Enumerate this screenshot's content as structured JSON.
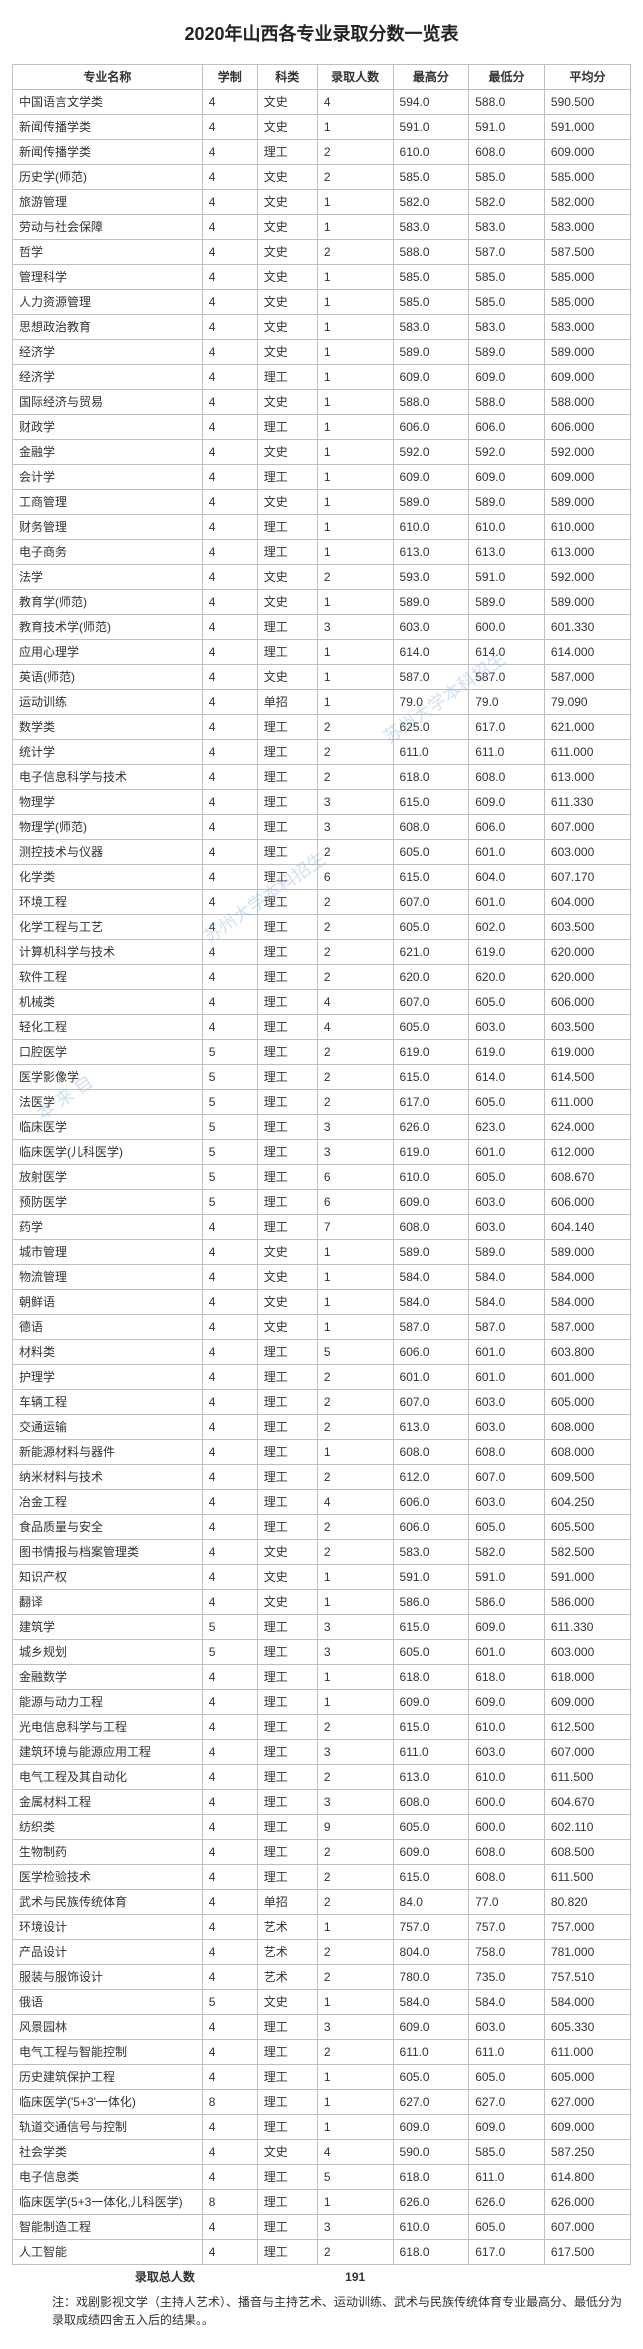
{
  "title": "2020年山西各专业录取分数一览表",
  "columns": [
    "专业名称",
    "学制",
    "科类",
    "录取人数",
    "最高分",
    "最低分",
    "平均分"
  ],
  "total_label": "录取总人数",
  "total_value": "191",
  "footnote": "注：戏剧影视文学（主持人艺术）、播音与主持艺术、运动训练、武术与民族传统体育专业最高分、最低分为录取成绩四舍五入后的结果。。",
  "rows": [
    [
      "中国语言文学类",
      "4",
      "文史",
      "4",
      "594.0",
      "588.0",
      "590.500"
    ],
    [
      "新闻传播学类",
      "4",
      "文史",
      "1",
      "591.0",
      "591.0",
      "591.000"
    ],
    [
      "新闻传播学类",
      "4",
      "理工",
      "2",
      "610.0",
      "608.0",
      "609.000"
    ],
    [
      "历史学(师范)",
      "4",
      "文史",
      "2",
      "585.0",
      "585.0",
      "585.000"
    ],
    [
      "旅游管理",
      "4",
      "文史",
      "1",
      "582.0",
      "582.0",
      "582.000"
    ],
    [
      "劳动与社会保障",
      "4",
      "文史",
      "1",
      "583.0",
      "583.0",
      "583.000"
    ],
    [
      "哲学",
      "4",
      "文史",
      "2",
      "588.0",
      "587.0",
      "587.500"
    ],
    [
      "管理科学",
      "4",
      "文史",
      "1",
      "585.0",
      "585.0",
      "585.000"
    ],
    [
      "人力资源管理",
      "4",
      "文史",
      "1",
      "585.0",
      "585.0",
      "585.000"
    ],
    [
      "思想政治教育",
      "4",
      "文史",
      "1",
      "583.0",
      "583.0",
      "583.000"
    ],
    [
      "经济学",
      "4",
      "文史",
      "1",
      "589.0",
      "589.0",
      "589.000"
    ],
    [
      "经济学",
      "4",
      "理工",
      "1",
      "609.0",
      "609.0",
      "609.000"
    ],
    [
      "国际经济与贸易",
      "4",
      "文史",
      "1",
      "588.0",
      "588.0",
      "588.000"
    ],
    [
      "财政学",
      "4",
      "理工",
      "1",
      "606.0",
      "606.0",
      "606.000"
    ],
    [
      "金融学",
      "4",
      "文史",
      "1",
      "592.0",
      "592.0",
      "592.000"
    ],
    [
      "会计学",
      "4",
      "理工",
      "1",
      "609.0",
      "609.0",
      "609.000"
    ],
    [
      "工商管理",
      "4",
      "文史",
      "1",
      "589.0",
      "589.0",
      "589.000"
    ],
    [
      "财务管理",
      "4",
      "理工",
      "1",
      "610.0",
      "610.0",
      "610.000"
    ],
    [
      "电子商务",
      "4",
      "理工",
      "1",
      "613.0",
      "613.0",
      "613.000"
    ],
    [
      "法学",
      "4",
      "文史",
      "2",
      "593.0",
      "591.0",
      "592.000"
    ],
    [
      "教育学(师范)",
      "4",
      "文史",
      "1",
      "589.0",
      "589.0",
      "589.000"
    ],
    [
      "教育技术学(师范)",
      "4",
      "理工",
      "3",
      "603.0",
      "600.0",
      "601.330"
    ],
    [
      "应用心理学",
      "4",
      "理工",
      "1",
      "614.0",
      "614.0",
      "614.000"
    ],
    [
      "英语(师范)",
      "4",
      "文史",
      "1",
      "587.0",
      "587.0",
      "587.000"
    ],
    [
      "运动训练",
      "4",
      "单招",
      "1",
      "79.0",
      "79.0",
      "79.090"
    ],
    [
      "数学类",
      "4",
      "理工",
      "2",
      "625.0",
      "617.0",
      "621.000"
    ],
    [
      "统计学",
      "4",
      "理工",
      "2",
      "611.0",
      "611.0",
      "611.000"
    ],
    [
      "电子信息科学与技术",
      "4",
      "理工",
      "2",
      "618.0",
      "608.0",
      "613.000"
    ],
    [
      "物理学",
      "4",
      "理工",
      "3",
      "615.0",
      "609.0",
      "611.330"
    ],
    [
      "物理学(师范)",
      "4",
      "理工",
      "3",
      "608.0",
      "606.0",
      "607.000"
    ],
    [
      "测控技术与仪器",
      "4",
      "理工",
      "2",
      "605.0",
      "601.0",
      "603.000"
    ],
    [
      "化学类",
      "4",
      "理工",
      "6",
      "615.0",
      "604.0",
      "607.170"
    ],
    [
      "环境工程",
      "4",
      "理工",
      "2",
      "607.0",
      "601.0",
      "604.000"
    ],
    [
      "化学工程与工艺",
      "4",
      "理工",
      "2",
      "605.0",
      "602.0",
      "603.500"
    ],
    [
      "计算机科学与技术",
      "4",
      "理工",
      "2",
      "621.0",
      "619.0",
      "620.000"
    ],
    [
      "软件工程",
      "4",
      "理工",
      "2",
      "620.0",
      "620.0",
      "620.000"
    ],
    [
      "机械类",
      "4",
      "理工",
      "4",
      "607.0",
      "605.0",
      "606.000"
    ],
    [
      "轻化工程",
      "4",
      "理工",
      "4",
      "605.0",
      "603.0",
      "603.500"
    ],
    [
      "口腔医学",
      "5",
      "理工",
      "2",
      "619.0",
      "619.0",
      "619.000"
    ],
    [
      "医学影像学",
      "5",
      "理工",
      "2",
      "615.0",
      "614.0",
      "614.500"
    ],
    [
      "法医学",
      "5",
      "理工",
      "2",
      "617.0",
      "605.0",
      "611.000"
    ],
    [
      "临床医学",
      "5",
      "理工",
      "3",
      "626.0",
      "623.0",
      "624.000"
    ],
    [
      "临床医学(儿科医学)",
      "5",
      "理工",
      "3",
      "619.0",
      "601.0",
      "612.000"
    ],
    [
      "放射医学",
      "5",
      "理工",
      "6",
      "610.0",
      "605.0",
      "608.670"
    ],
    [
      "预防医学",
      "5",
      "理工",
      "6",
      "609.0",
      "603.0",
      "606.000"
    ],
    [
      "药学",
      "4",
      "理工",
      "7",
      "608.0",
      "603.0",
      "604.140"
    ],
    [
      "城市管理",
      "4",
      "文史",
      "1",
      "589.0",
      "589.0",
      "589.000"
    ],
    [
      "物流管理",
      "4",
      "文史",
      "1",
      "584.0",
      "584.0",
      "584.000"
    ],
    [
      "朝鲜语",
      "4",
      "文史",
      "1",
      "584.0",
      "584.0",
      "584.000"
    ],
    [
      "德语",
      "4",
      "文史",
      "1",
      "587.0",
      "587.0",
      "587.000"
    ],
    [
      "材料类",
      "4",
      "理工",
      "5",
      "606.0",
      "601.0",
      "603.800"
    ],
    [
      "护理学",
      "4",
      "理工",
      "2",
      "601.0",
      "601.0",
      "601.000"
    ],
    [
      "车辆工程",
      "4",
      "理工",
      "2",
      "607.0",
      "603.0",
      "605.000"
    ],
    [
      "交通运输",
      "4",
      "理工",
      "2",
      "613.0",
      "603.0",
      "608.000"
    ],
    [
      "新能源材料与器件",
      "4",
      "理工",
      "1",
      "608.0",
      "608.0",
      "608.000"
    ],
    [
      "纳米材料与技术",
      "4",
      "理工",
      "2",
      "612.0",
      "607.0",
      "609.500"
    ],
    [
      "冶金工程",
      "4",
      "理工",
      "4",
      "606.0",
      "603.0",
      "604.250"
    ],
    [
      "食品质量与安全",
      "4",
      "理工",
      "2",
      "606.0",
      "605.0",
      "605.500"
    ],
    [
      "图书情报与档案管理类",
      "4",
      "文史",
      "2",
      "583.0",
      "582.0",
      "582.500"
    ],
    [
      "知识产权",
      "4",
      "文史",
      "1",
      "591.0",
      "591.0",
      "591.000"
    ],
    [
      "翻译",
      "4",
      "文史",
      "1",
      "586.0",
      "586.0",
      "586.000"
    ],
    [
      "建筑学",
      "5",
      "理工",
      "3",
      "615.0",
      "609.0",
      "611.330"
    ],
    [
      "城乡规划",
      "5",
      "理工",
      "3",
      "605.0",
      "601.0",
      "603.000"
    ],
    [
      "金融数学",
      "4",
      "理工",
      "1",
      "618.0",
      "618.0",
      "618.000"
    ],
    [
      "能源与动力工程",
      "4",
      "理工",
      "1",
      "609.0",
      "609.0",
      "609.000"
    ],
    [
      "光电信息科学与工程",
      "4",
      "理工",
      "2",
      "615.0",
      "610.0",
      "612.500"
    ],
    [
      "建筑环境与能源应用工程",
      "4",
      "理工",
      "3",
      "611.0",
      "603.0",
      "607.000"
    ],
    [
      "电气工程及其自动化",
      "4",
      "理工",
      "2",
      "613.0",
      "610.0",
      "611.500"
    ],
    [
      "金属材料工程",
      "4",
      "理工",
      "3",
      "608.0",
      "600.0",
      "604.670"
    ],
    [
      "纺织类",
      "4",
      "理工",
      "9",
      "605.0",
      "600.0",
      "602.110"
    ],
    [
      "生物制药",
      "4",
      "理工",
      "2",
      "609.0",
      "608.0",
      "608.500"
    ],
    [
      "医学检验技术",
      "4",
      "理工",
      "2",
      "615.0",
      "608.0",
      "611.500"
    ],
    [
      "武术与民族传统体育",
      "4",
      "单招",
      "2",
      "84.0",
      "77.0",
      "80.820"
    ],
    [
      "环境设计",
      "4",
      "艺术",
      "1",
      "757.0",
      "757.0",
      "757.000"
    ],
    [
      "产品设计",
      "4",
      "艺术",
      "2",
      "804.0",
      "758.0",
      "781.000"
    ],
    [
      "服装与服饰设计",
      "4",
      "艺术",
      "2",
      "780.0",
      "735.0",
      "757.510"
    ],
    [
      "俄语",
      "5",
      "文史",
      "1",
      "584.0",
      "584.0",
      "584.000"
    ],
    [
      "风景园林",
      "4",
      "理工",
      "3",
      "609.0",
      "603.0",
      "605.330"
    ],
    [
      "电气工程与智能控制",
      "4",
      "理工",
      "2",
      "611.0",
      "611.0",
      "611.000"
    ],
    [
      "历史建筑保护工程",
      "4",
      "理工",
      "1",
      "605.0",
      "605.0",
      "605.000"
    ],
    [
      "临床医学('5+3'一体化)",
      "8",
      "理工",
      "1",
      "627.0",
      "627.0",
      "627.000"
    ],
    [
      "轨道交通信号与控制",
      "4",
      "理工",
      "1",
      "609.0",
      "609.0",
      "609.000"
    ],
    [
      "社会学类",
      "4",
      "文史",
      "4",
      "590.0",
      "585.0",
      "587.250"
    ],
    [
      "电子信息类",
      "4",
      "理工",
      "5",
      "618.0",
      "611.0",
      "614.800"
    ],
    [
      "临床医学(5+3一体化,儿科医学)",
      "8",
      "理工",
      "1",
      "626.0",
      "626.0",
      "626.000"
    ],
    [
      "智能制造工程",
      "4",
      "理工",
      "3",
      "610.0",
      "605.0",
      "607.000"
    ],
    [
      "人工智能",
      "4",
      "理工",
      "2",
      "618.0",
      "617.0",
      "617.500"
    ]
  ]
}
